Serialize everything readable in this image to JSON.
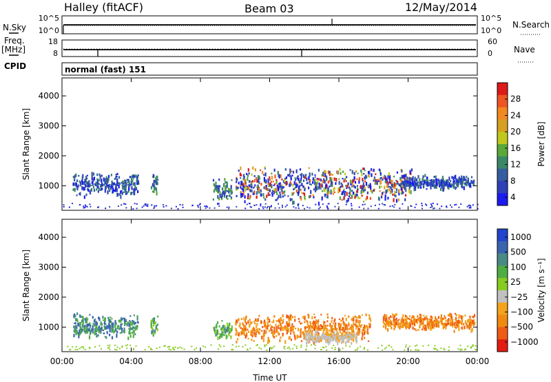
{
  "header": {
    "radar": "Halley (fitACF)",
    "beam": "Beam 03",
    "date": "12/May/2014"
  },
  "status_panels": {
    "nsky_label": "N.Sky",
    "nsearch_label": "N.Search",
    "nsky_ticks": [
      "10^5",
      "10^0"
    ],
    "nsearch_ticks": [
      "10^5",
      "10^0"
    ],
    "freq_label_1": "Freq.",
    "freq_label_2": "[MHz]",
    "freq_ticks": [
      "18",
      "8"
    ],
    "nave_label": "Nave",
    "nave_ticks": [
      "60",
      "0"
    ],
    "cpid_label": "CPID",
    "cpid_text": "normal (fast) 151"
  },
  "chart_data": [
    {
      "type": "heatmap",
      "name": "power",
      "xlabel": "",
      "ylabel": "Slant Range [km]",
      "x_ticks": [
        "00:00",
        "04:00",
        "08:00",
        "12:00",
        "16:00",
        "20:00",
        "00:00"
      ],
      "y_ticks": [
        1000,
        2000,
        3000,
        4000
      ],
      "ylim": [
        180,
        4600
      ],
      "xlim_hours": [
        0,
        24
      ],
      "colorbar": {
        "label": "Power [dB]",
        "ticks": [
          "28",
          "24",
          "20",
          "16",
          "12",
          "8",
          "4"
        ],
        "colors": [
          "#dd1a1a",
          "#ee5522",
          "#f28822",
          "#d8a020",
          "#c0c81e",
          "#5aa838",
          "#3b8868",
          "#365da0",
          "#2e3fb8",
          "#1b1bf0"
        ]
      },
      "clusters": [
        {
          "t0": 0.6,
          "t1": 4.4,
          "r0": 650,
          "r1": 1500,
          "dominant": "low-mid"
        },
        {
          "t0": 5.1,
          "t1": 5.5,
          "r0": 700,
          "r1": 1500,
          "dominant": "mid"
        },
        {
          "t0": 8.7,
          "t1": 9.8,
          "r0": 500,
          "r1": 1300,
          "dominant": "mid"
        },
        {
          "t0": 10.0,
          "t1": 20.2,
          "r0": 450,
          "r1": 1700,
          "dominant": "high"
        },
        {
          "t0": 19.5,
          "t1": 23.8,
          "r0": 900,
          "r1": 1400,
          "dominant": "low"
        }
      ]
    },
    {
      "type": "heatmap",
      "name": "velocity",
      "xlabel": "Time UT",
      "ylabel": "Slant Range [km]",
      "x_ticks": [
        "00:00",
        "04:00",
        "08:00",
        "12:00",
        "16:00",
        "20:00",
        "00:00"
      ],
      "y_ticks": [
        1000,
        2000,
        3000,
        4000
      ],
      "ylim": [
        180,
        4600
      ],
      "xlim_hours": [
        0,
        24
      ],
      "colorbar": {
        "label": "Velocity [m s⁻¹]",
        "ticks": [
          "1000",
          "500",
          "100",
          "25",
          "−25",
          "−100",
          "−500",
          "−1000"
        ],
        "colors": [
          "#2244cc",
          "#3a64b0",
          "#4a8a86",
          "#4fae42",
          "#88cc22",
          "#c0c0c0",
          "#f3a31d",
          "#f08a12",
          "#ef5b15",
          "#e21d12"
        ]
      },
      "clusters": [
        {
          "t0": 0.6,
          "t1": 4.4,
          "r0": 650,
          "r1": 1500,
          "dominant": "blue-green"
        },
        {
          "t0": 5.1,
          "t1": 5.5,
          "r0": 700,
          "r1": 1500,
          "dominant": "green"
        },
        {
          "t0": 8.7,
          "t1": 9.8,
          "r0": 600,
          "r1": 1300,
          "dominant": "green"
        },
        {
          "t0": 10.0,
          "t1": 17.8,
          "r0": 500,
          "r1": 1500,
          "dominant": "orange"
        },
        {
          "t0": 14.0,
          "t1": 17.0,
          "r0": 500,
          "r1": 900,
          "dominant": "grey"
        },
        {
          "t0": 18.5,
          "t1": 23.8,
          "r0": 900,
          "r1": 1500,
          "dominant": "orange"
        }
      ]
    }
  ]
}
